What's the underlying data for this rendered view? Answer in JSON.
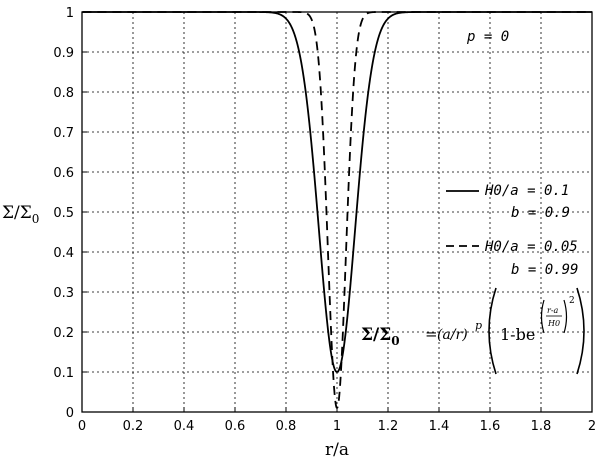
{
  "chart_data": {
    "type": "line",
    "xlabel": "r/a",
    "ylabel": "Σ/Σ",
    "ylabel_sub": "0",
    "xlim": [
      0,
      2
    ],
    "ylim": [
      0,
      1
    ],
    "x_ticks": [
      "0",
      "0.2",
      "0.4",
      "0.6",
      "0.8",
      "1",
      "1.2",
      "1.4",
      "1.6",
      "1.8",
      "2"
    ],
    "y_ticks": [
      "0",
      "0.1",
      "0.2",
      "0.3",
      "0.4",
      "0.5",
      "0.6",
      "0.7",
      "0.8",
      "0.9",
      "1"
    ],
    "grid": true,
    "legend_position": "right",
    "annotation": "p = 0",
    "series": [
      {
        "legend_line1": "H0/a = 0.1",
        "legend_line2": "b = 0.9",
        "style": "solid",
        "h0_over_a": 0.1,
        "b": 0.9,
        "p": 0
      },
      {
        "legend_line1": "H0/a = 0.05",
        "legend_line2": "b = 0.99",
        "style": "dashed",
        "h0_over_a": 0.05,
        "b": 0.99,
        "p": 0
      }
    ],
    "formula": {
      "lhs": "Σ/Σ",
      "lhs_sub": "0",
      "equals": "=",
      "factor": "(a/r)",
      "factor_exp": "p",
      "one_minus_b": "1-be",
      "exp_num": "r-a",
      "exp_den": "H0",
      "exp_pow": "2"
    }
  }
}
